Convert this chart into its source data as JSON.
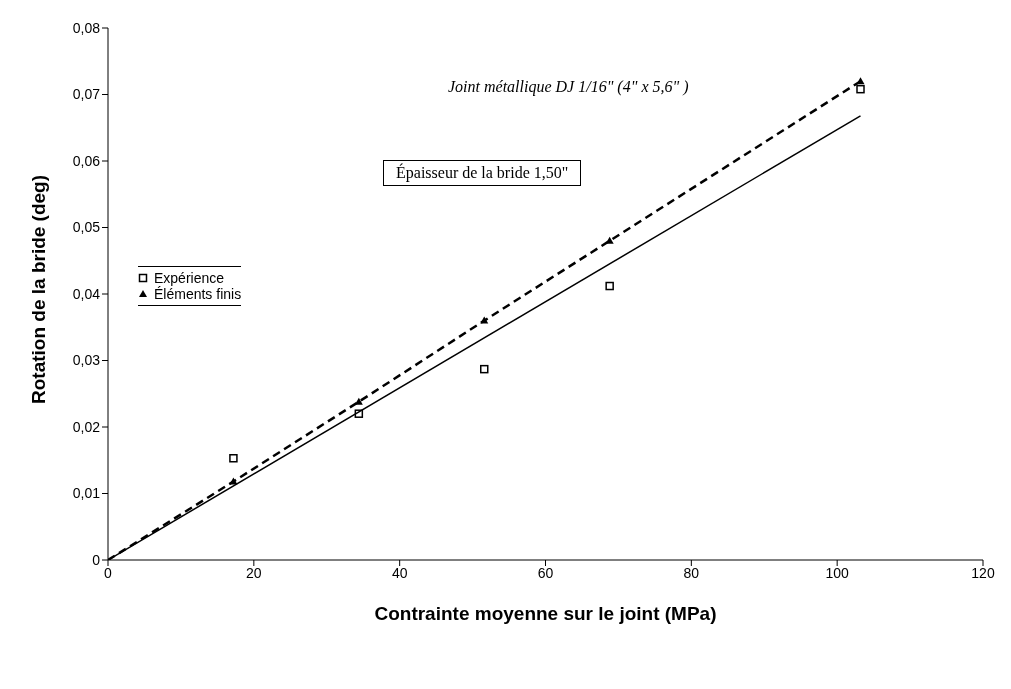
{
  "chart_data": {
    "type": "scatter",
    "xlabel": "Contrainte moyenne sur le joint (MPa)",
    "ylabel": "Rotation de la bride (deg)",
    "annotations": [
      "Joint métallique DJ 1/16\" (4\" x 5,6\" )",
      "Épaisseur de la bride  1,50\""
    ],
    "xlim": [
      0,
      120
    ],
    "xticks": [
      0,
      20,
      40,
      60,
      80,
      100,
      120
    ],
    "ylim": [
      0,
      0.08
    ],
    "yticks": [
      0,
      {
        "value": 0.01,
        "label": "0,01"
      },
      {
        "value": 0.02,
        "label": "0,02"
      },
      {
        "value": 0.03,
        "label": "0,03"
      },
      {
        "value": 0.04,
        "label": "0,04"
      },
      {
        "value": 0.05,
        "label": "0,05"
      },
      {
        "value": 0.06,
        "label": "0,06"
      },
      {
        "value": 0.07,
        "label": "0,07"
      },
      {
        "value": 0.08,
        "label": "0,08"
      }
    ],
    "grid": false,
    "legend": "left",
    "series": [
      {
        "name": "Expérience",
        "marker": "square",
        "color": "#000000",
        "x": [
          17.2,
          34.4,
          51.6,
          68.8,
          103.2
        ],
        "values": [
          0.0153,
          0.022,
          0.0287,
          0.0412,
          0.0708
        ]
      },
      {
        "name": "Éléments finis",
        "marker": "triangle",
        "color": "#000000",
        "x": [
          17.2,
          34.4,
          51.6,
          68.8,
          103.2
        ],
        "values": [
          0.0118,
          0.0238,
          0.036,
          0.048,
          0.072
        ]
      },
      {
        "type": "line",
        "line_style": "solid",
        "marker": "none",
        "color": "#000000",
        "x": [
          0,
          103.2
        ],
        "values": [
          0,
          0.0668
        ]
      },
      {
        "type": "line",
        "line_style": "dashed",
        "marker": "none",
        "color": "#000000",
        "x": [
          0,
          17.2,
          34.4,
          51.6,
          68.8,
          103.2
        ],
        "values": [
          0,
          0.0118,
          0.0238,
          0.036,
          0.048,
          0.072
        ]
      }
    ]
  }
}
